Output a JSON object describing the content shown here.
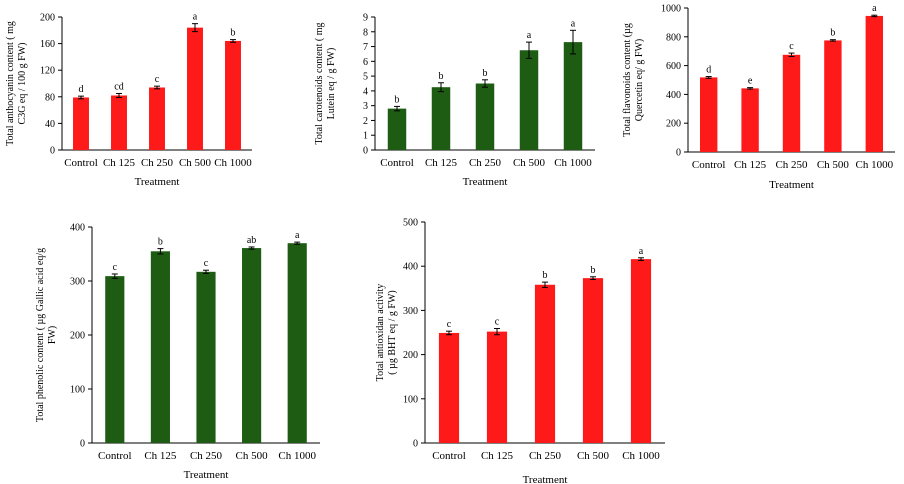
{
  "chart_data": [
    {
      "type": "bar",
      "categories": [
        "Control",
        "Ch 125",
        "Ch 250",
        "Ch 500",
        "Ch 1000"
      ],
      "values": [
        79,
        82,
        94,
        184,
        164
      ],
      "errors": [
        2,
        3,
        2,
        6,
        2
      ],
      "letters": [
        "d",
        "cd",
        "c",
        "a",
        "b"
      ],
      "color": "#ff1a1a",
      "xlabel": "Treatment",
      "ylabel": [
        "Total anthocyanin content ( mg",
        "C3G eq / 100 g FW)"
      ],
      "ylim": [
        0,
        200
      ],
      "yticks": [
        0,
        40,
        80,
        120,
        160,
        200
      ]
    },
    {
      "type": "bar",
      "categories": [
        "Control",
        "Ch 125",
        "Ch 250",
        "Ch 500",
        "Ch 1000"
      ],
      "values": [
        2.8,
        4.25,
        4.5,
        6.75,
        7.3
      ],
      "errors": [
        0.15,
        0.3,
        0.25,
        0.55,
        0.8
      ],
      "letters": [
        "b",
        "b",
        "b",
        "a",
        "a"
      ],
      "color": "#1e5c14",
      "xlabel": "Treatment",
      "ylabel": [
        "Total carotenoids content ( mg",
        "Lutein eq / g FW)"
      ],
      "ylim": [
        0,
        9
      ],
      "yticks": [
        0,
        1,
        2,
        3,
        4,
        5,
        6,
        7,
        8,
        9
      ]
    },
    {
      "type": "bar",
      "categories": [
        "Control",
        "Ch 125",
        "Ch 250",
        "Ch 500",
        "Ch 1000"
      ],
      "values": [
        518,
        442,
        675,
        775,
        945
      ],
      "errors": [
        6,
        5,
        12,
        5,
        5
      ],
      "letters": [
        "d",
        "e",
        "c",
        "b",
        "a"
      ],
      "color": "#ff1a1a",
      "xlabel": "Treatment",
      "ylabel": [
        "Total flavonoids content (µg",
        "Quercetin eq/ g FW)"
      ],
      "ylim": [
        0,
        1000
      ],
      "yticks": [
        0,
        200,
        400,
        600,
        800,
        1000
      ]
    },
    {
      "type": "bar",
      "categories": [
        "Control",
        "Ch 125",
        "Ch 250",
        "Ch 500",
        "Ch 1000"
      ],
      "values": [
        309,
        355,
        317,
        361,
        370
      ],
      "errors": [
        4,
        5,
        3,
        2,
        2
      ],
      "letters": [
        "c",
        "b",
        "c",
        "ab",
        "a"
      ],
      "color": "#1e5c14",
      "xlabel": "Treatment",
      "ylabel": [
        "Total phenolic content ( µg Gallic acid eq/g",
        "FW)"
      ],
      "ylim": [
        0,
        400
      ],
      "yticks": [
        0,
        100,
        200,
        300,
        400
      ]
    },
    {
      "type": "bar",
      "categories": [
        "Control",
        "Ch 125",
        "Ch 250",
        "Ch 500",
        "Ch 1000"
      ],
      "values": [
        249,
        252,
        358,
        373,
        416
      ],
      "errors": [
        4,
        7,
        6,
        3,
        3
      ],
      "letters": [
        "c",
        "c",
        "b",
        "b",
        "a"
      ],
      "color": "#ff1a1a",
      "xlabel": "Treatment",
      "ylabel": [
        "Total antioxidan activity",
        "( µg BHT eq / g FW)"
      ],
      "ylim": [
        0,
        500
      ],
      "yticks": [
        0,
        100,
        200,
        300,
        400,
        500
      ]
    }
  ]
}
